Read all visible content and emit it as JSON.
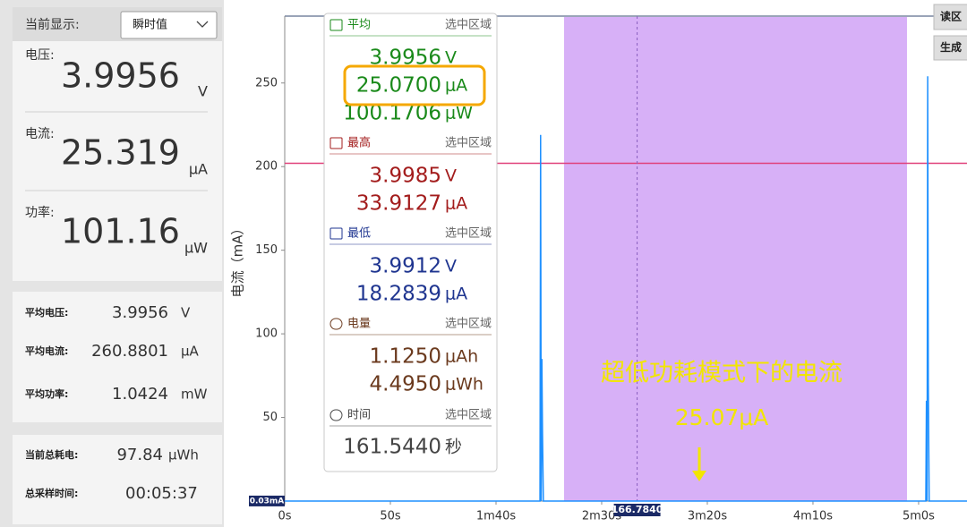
{
  "left_panel": {
    "display_label": "当前显示:",
    "display_mode": "瞬时值",
    "readings": [
      {
        "label": "电压:",
        "value": "3.9956",
        "unit": "V"
      },
      {
        "label": "电流:",
        "value": "25.319",
        "unit": "μA"
      },
      {
        "label": "功率:",
        "value": "101.16",
        "unit": "μW"
      }
    ],
    "averages": [
      {
        "label": "平均电压:",
        "value": "3.9956",
        "unit": "V"
      },
      {
        "label": "平均电流:",
        "value": "260.8801",
        "unit": "μA"
      },
      {
        "label": "平均功率:",
        "value": "1.0424",
        "unit": "mW"
      }
    ],
    "totals": [
      {
        "label": "当前总耗电:",
        "value": "97.84",
        "unit": "μWh"
      },
      {
        "label": "总采样时间:",
        "value": "00:05:37"
      }
    ]
  },
  "info_panel": {
    "sections": [
      {
        "title": "平均",
        "scope": "选中区域",
        "color": "#1a8a1a",
        "lines": [
          {
            "value": "3.9956",
            "unit": "V"
          },
          {
            "value": "25.0700",
            "unit": "μA"
          },
          {
            "value": "100.1706",
            "unit": "μW"
          }
        ]
      },
      {
        "title": "最高",
        "scope": "选中区域",
        "color": "#a31c1c",
        "lines": [
          {
            "value": "3.9985",
            "unit": "V"
          },
          {
            "value": "33.9127",
            "unit": "μA"
          }
        ]
      },
      {
        "title": "最低",
        "scope": "选中区域",
        "color": "#1f3590",
        "lines": [
          {
            "value": "3.9912",
            "unit": "V"
          },
          {
            "value": "18.2839",
            "unit": "μA"
          }
        ]
      },
      {
        "title": "电量",
        "scope": "选中区域",
        "color": "#6b3a1e",
        "lines": [
          {
            "value": "1.1250",
            "unit": "μAh"
          },
          {
            "value": "4.4950",
            "unit": "μWh"
          }
        ]
      },
      {
        "title": "时间",
        "scope": "选中区域",
        "color": "#444444",
        "lines": [
          {
            "value": "161.5440",
            "unit": "秒"
          }
        ]
      }
    ]
  },
  "buttons": [
    "读区",
    "生成"
  ],
  "chart_data": {
    "type": "line",
    "y_label": "电流（mA）",
    "xlim": [
      0,
      322.9
    ],
    "ylim": [
      0,
      290
    ],
    "xticks": [
      {
        "value": 0,
        "label": "0s"
      },
      {
        "value": 50,
        "label": "50s"
      },
      {
        "value": 100,
        "label": "1m40s"
      },
      {
        "value": 150,
        "label": "2m30s"
      },
      {
        "value": 200,
        "label": "3m20s"
      },
      {
        "value": 250,
        "label": "4m10s"
      },
      {
        "value": 300,
        "label": "5m0s"
      }
    ],
    "yticks": [
      50,
      100,
      150,
      200,
      250
    ],
    "grid": false,
    "series": [
      {
        "color": "#1e90ff",
        "x": [
          0,
          120.8,
          121.1,
          121.4,
          121.7,
          122.0,
          122.4,
          303.4,
          303.7,
          304.0,
          304.3,
          304.6,
          305.0,
          322.9
        ],
        "values": [
          0.03,
          0.03,
          219,
          0.03,
          85,
          40,
          0.03,
          0.03,
          60,
          0.03,
          254,
          70,
          0.03,
          0.03
        ]
      }
    ],
    "selection": [
      132.2,
      294.5
    ],
    "selection_color": "#d7b0f7",
    "cursor": {
      "value": 166.784,
      "label": "166.7840"
    },
    "baseline": {
      "value": 0.03,
      "label": "0.03mA"
    },
    "reference_line": 202,
    "reference_color": "#e0407a",
    "annotations": [
      "超低功耗模式下的电流",
      "25.07μA"
    ],
    "annotation_color": "#f2e600"
  }
}
